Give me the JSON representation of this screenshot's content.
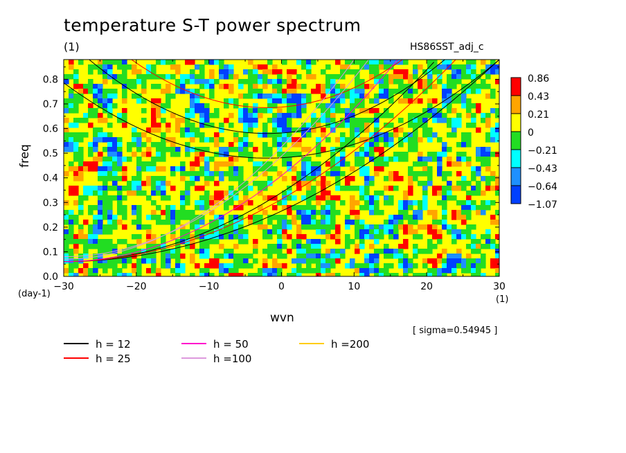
{
  "title": "temperature S-T power spectrum",
  "subtitle_left": "(1)",
  "subtitle_right": "HS86SST_adj_c",
  "sigma_note": "[ sigma=0.54945 ]",
  "colors": {
    "red": "#ff0000",
    "orange": "#ffa500",
    "yellow": "#ffff00",
    "green": "#22dd22",
    "cyan": "#00ffff",
    "skyblue": "#1e90ff",
    "blue": "#0040ff"
  },
  "chart_data": {
    "type": "heatmap",
    "xlabel": "wvn",
    "ylabel": "freq",
    "x_unit": "(1)",
    "y_unit": "(day-1)",
    "xlim": [
      -30,
      30
    ],
    "ylim": [
      0,
      0.88
    ],
    "x_ticks": [
      -30,
      -20,
      -10,
      0,
      10,
      20,
      30
    ],
    "y_ticks": [
      0.0,
      0.1,
      0.2,
      0.3,
      0.4,
      0.5,
      0.6,
      0.7,
      0.8
    ],
    "x_tick_labels": [
      "−30",
      "−20",
      "−10",
      "0",
      "10",
      "20",
      "30"
    ],
    "y_tick_labels": [
      "0.0",
      "0.1",
      "0.2",
      "0.3",
      "0.4",
      "0.5",
      "0.6",
      "0.7",
      "0.8"
    ],
    "colorbar": {
      "levels": [
        "0.86",
        "0.43",
        "0.21",
        "0",
        "−0.21",
        "−0.43",
        "−0.64",
        "−1.07"
      ],
      "bins": [
        {
          "color": "#ff0000"
        },
        {
          "color": "#ffa500"
        },
        {
          "color": "#ffff00"
        },
        {
          "color": "#22dd22"
        },
        {
          "color": "#00ffff"
        },
        {
          "color": "#1e90ff"
        },
        {
          "color": "#0040ff"
        }
      ]
    },
    "dispersion_curves": [
      {
        "name": "h = 12",
        "color": "#000000"
      },
      {
        "name": "h = 25",
        "color": "#ff0000"
      },
      {
        "name": "h = 50",
        "color": "#ff00cc"
      },
      {
        "name": "h =100",
        "color": "#dd99dd"
      },
      {
        "name": "h =200",
        "color": "#ffcc00"
      }
    ]
  }
}
